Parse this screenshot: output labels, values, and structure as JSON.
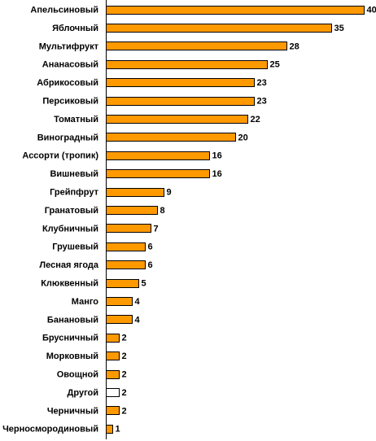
{
  "chart_data": {
    "type": "bar",
    "orientation": "horizontal",
    "title": "",
    "xlabel": "",
    "ylabel": "",
    "xlim": [
      0,
      40
    ],
    "grid": false,
    "legend": "none",
    "bar_color": "#FF9900",
    "highlight_color": "#FFFFFF",
    "categories": [
      "Апельсиновый",
      "Яблочный",
      "Мультифрукт",
      "Ананасовый",
      "Абрикосовый",
      "Персиковый",
      "Томатный",
      "Виноградный",
      "Ассорти (тропик)",
      "Вишневый",
      "Грейпфрут",
      "Гранатовый",
      "Клубничный",
      "Грушевый",
      "Лесная ягода",
      "Клюквенный",
      "Манго",
      "Банановый",
      "Брусничный",
      "Морковный",
      "Овощной",
      "Другой",
      "Черничный",
      "Черносмородиновый"
    ],
    "values": [
      40,
      35,
      28,
      25,
      23,
      23,
      22,
      20,
      16,
      16,
      9,
      8,
      7,
      6,
      6,
      5,
      4,
      4,
      2,
      2,
      2,
      2,
      2,
      1
    ],
    "value_labels": [
      "40",
      "35",
      "28",
      "25",
      "23",
      "23",
      "22",
      "20",
      "16",
      "16",
      "9",
      "8",
      "7",
      "6",
      "6",
      "5",
      "4",
      "4",
      "2",
      "2",
      "2",
      "2",
      "2",
      "1"
    ],
    "highlight_categories": [
      "Другой"
    ]
  }
}
